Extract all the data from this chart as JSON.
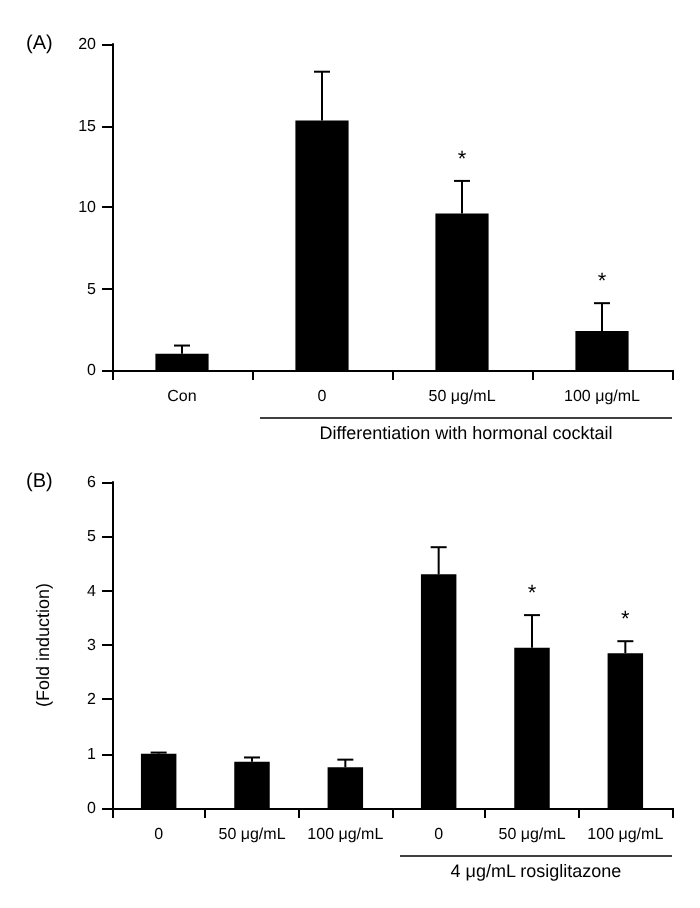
{
  "chart_data": [
    {
      "type": "bar",
      "title": "(A)",
      "categories": [
        "Con",
        "0",
        "50 μg/mL",
        "100 μg/mL"
      ],
      "xlabel": "Differentiation with hormonal cocktail",
      "series": [
        {
          "color": "#000000",
          "values": [
            1.0,
            15.3,
            9.6,
            2.4
          ],
          "errors": [
            [
              1.0,
              1.5
            ],
            [
              15.3,
              18.3
            ],
            [
              9.6,
              11.6
            ],
            [
              2.4,
              4.1
            ]
          ]
        }
      ],
      "ylim": [
        0,
        20
      ],
      "yticks": [
        0,
        5,
        10,
        15,
        20
      ],
      "grid": false,
      "annotations": [
        {
          "text": "*",
          "x": "50 μg/mL",
          "y": 11.6
        },
        {
          "text": "*",
          "x": "100 μg/mL",
          "y": 4.1
        }
      ]
    },
    {
      "type": "bar",
      "title": "(B)",
      "categories": [
        "0",
        "50 μg/mL",
        "100 μg/mL",
        "0",
        "50 μg/mL",
        "100 μg/mL"
      ],
      "xlabel": "4 μg/mL rosiglitazone",
      "ylabel": "(Fold induction)",
      "series": [
        {
          "color": "#000000",
          "values": [
            1.0,
            0.85,
            0.75,
            4.3,
            2.95,
            2.85
          ],
          "errors": [
            [
              1.0,
              1.02
            ],
            [
              0.85,
              0.93
            ],
            [
              0.75,
              0.89
            ],
            [
              4.3,
              4.8
            ],
            [
              2.95,
              3.55
            ],
            [
              2.85,
              3.07
            ]
          ]
        }
      ],
      "ylim": [
        0,
        6
      ],
      "yticks": [
        0,
        1,
        2,
        3,
        4,
        5,
        6
      ],
      "grid": false,
      "annotations": [
        "*",
        "*"
      ]
    }
  ]
}
